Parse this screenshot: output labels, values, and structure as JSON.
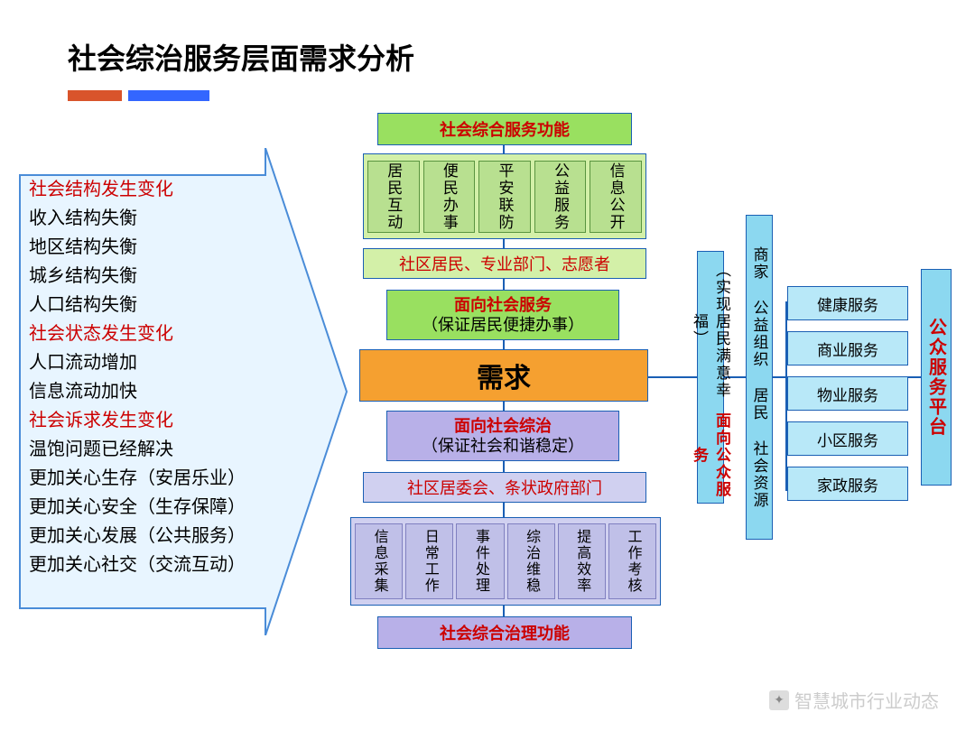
{
  "title": "社会综治服务层面需求分析",
  "colors": {
    "accent_orange": "#d9542b",
    "accent_blue": "#3366ff",
    "arrow_fill": "#e8f5ff",
    "arrow_stroke": "#4a8cd8",
    "green": "#99e060",
    "lightgreen": "#d3f0a8",
    "purple": "#b8b0e8",
    "lightpurple": "#d0d0f0",
    "orange": "#f5a030",
    "cyan": "#8cd8f0",
    "red_text": "#cc0000",
    "border": "#1a5fb4"
  },
  "left_list": [
    {
      "text": "社会结构发生变化",
      "red": true
    },
    {
      "text": "收入结构失衡",
      "red": false
    },
    {
      "text": "地区结构失衡",
      "red": false
    },
    {
      "text": "城乡结构失衡",
      "red": false
    },
    {
      "text": "人口结构失衡",
      "red": false
    },
    {
      "text": "社会状态发生变化",
      "red": true
    },
    {
      "text": "人口流动增加",
      "red": false
    },
    {
      "text": "信息流动加快",
      "red": false
    },
    {
      "text": "社会诉求发生变化",
      "red": true
    },
    {
      "text": "温饱问题已经解决",
      "red": false
    },
    {
      "text": "更加关心生存（安居乐业）",
      "red": false
    },
    {
      "text": "更加关心安全（生存保障）",
      "red": false
    },
    {
      "text": "更加关心发展（公共服务）",
      "red": false
    },
    {
      "text": "更加关心社交（交流互动）",
      "red": false
    }
  ],
  "top_title": "社会综合服务功能",
  "top_row": [
    "居民互动",
    "便民办事",
    "平安联防",
    "公益服务",
    "信息公开"
  ],
  "actors_top": "社区居民、专业部门、志愿者",
  "service_box": {
    "l1": "面向社会服务",
    "l2": "（保证居民便捷办事）"
  },
  "center": "需求",
  "govern_box": {
    "l1": "面向社会综治",
    "l2": "（保证社会和谐稳定）"
  },
  "actors_bottom": "社区居委会、条状政府部门",
  "bottom_row": [
    "信息采集",
    "日常工作",
    "事件处理",
    "综治维稳",
    "提高效率",
    "工作考核"
  ],
  "bottom_title": "社会综合治理功能",
  "right_vert1": {
    "l1": "面向公众服务",
    "l2": "（实现居民满意幸福）"
  },
  "right_vert2": "商家 公益组织 居民 社会资源",
  "right_list": [
    "健康服务",
    "商业服务",
    "物业服务",
    "小区服务",
    "家政服务"
  ],
  "platform": "公众服务平台",
  "footer": "智慧城市行业动态"
}
